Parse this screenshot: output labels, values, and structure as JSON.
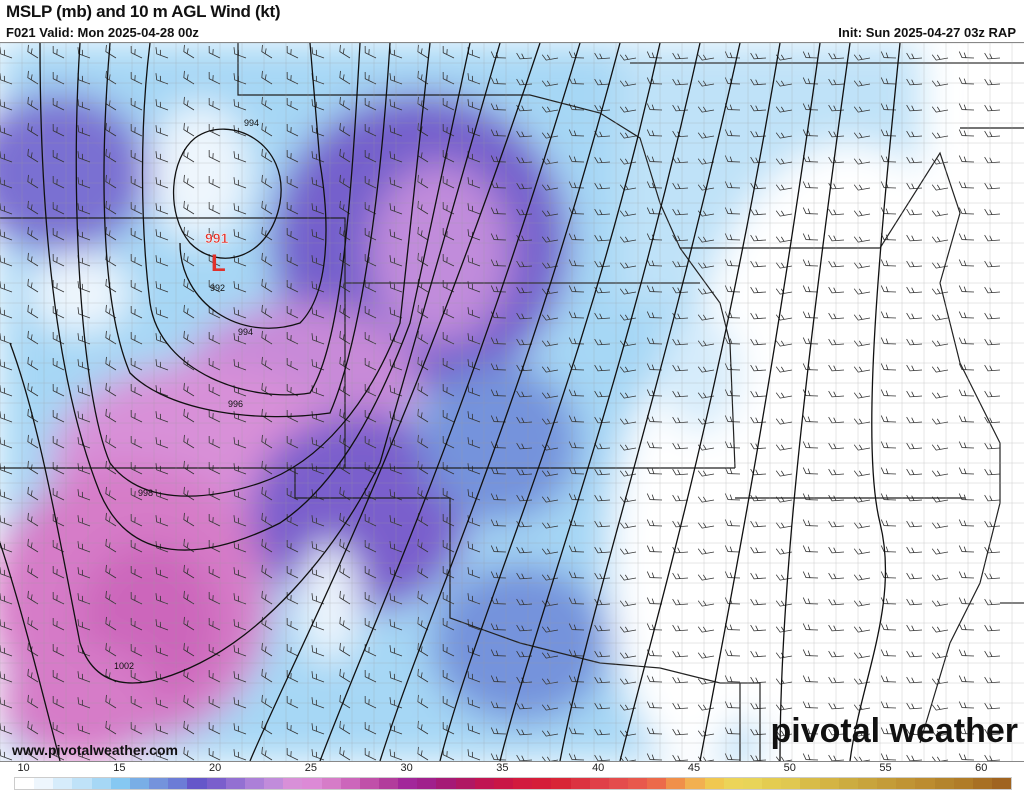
{
  "header": {
    "title": "MSLP (mb) and 10 m AGL Wind (kt)",
    "valid": "F021 Valid: Mon 2025-04-28 00z",
    "init": "Init: Sun 2025-04-27 03z RAP"
  },
  "map": {
    "low_center": {
      "label": "L",
      "pressure": "991",
      "color": "#e0302a"
    },
    "isobar_labels": [
      "994",
      "992",
      "994",
      "996",
      "998",
      "1002"
    ]
  },
  "footer": {
    "url": "www.pivotalweather.com",
    "logo": "pivotal weather"
  },
  "colorbar": {
    "units": "kt",
    "min": 10,
    "max": 62,
    "tick_labels": [
      "10",
      "15",
      "20",
      "25",
      "30",
      "35",
      "40",
      "45",
      "50",
      "55",
      "60"
    ],
    "colors": [
      "#ffffff",
      "#eef6fd",
      "#d6ecfb",
      "#bfe2f8",
      "#a6d7f5",
      "#86c8f2",
      "#79aee6",
      "#7493dc",
      "#6c7cd6",
      "#6557c9",
      "#7a5fcc",
      "#9370d2",
      "#ac80d8",
      "#c18cdb",
      "#d890d8",
      "#dc8ad6",
      "#d67cc8",
      "#cc66bb",
      "#c050a9",
      "#b23c9c",
      "#a2279a",
      "#a0208c",
      "#a51a76",
      "#b01863",
      "#c01552",
      "#c91646",
      "#d21b3e",
      "#d51d38",
      "#d82536",
      "#dc3340",
      "#e04048",
      "#e44c4c",
      "#e8584c",
      "#ec6a4a",
      "#f0904a",
      "#f2b050",
      "#f0c850",
      "#ecd458",
      "#e8d458",
      "#e4cc50",
      "#e0c850",
      "#d8bc48",
      "#d4b444",
      "#ccac40",
      "#c8a43c",
      "#c49c38",
      "#c09434",
      "#bc8c30",
      "#b4842c",
      "#b07c28",
      "#a87024",
      "#a06420"
    ]
  }
}
